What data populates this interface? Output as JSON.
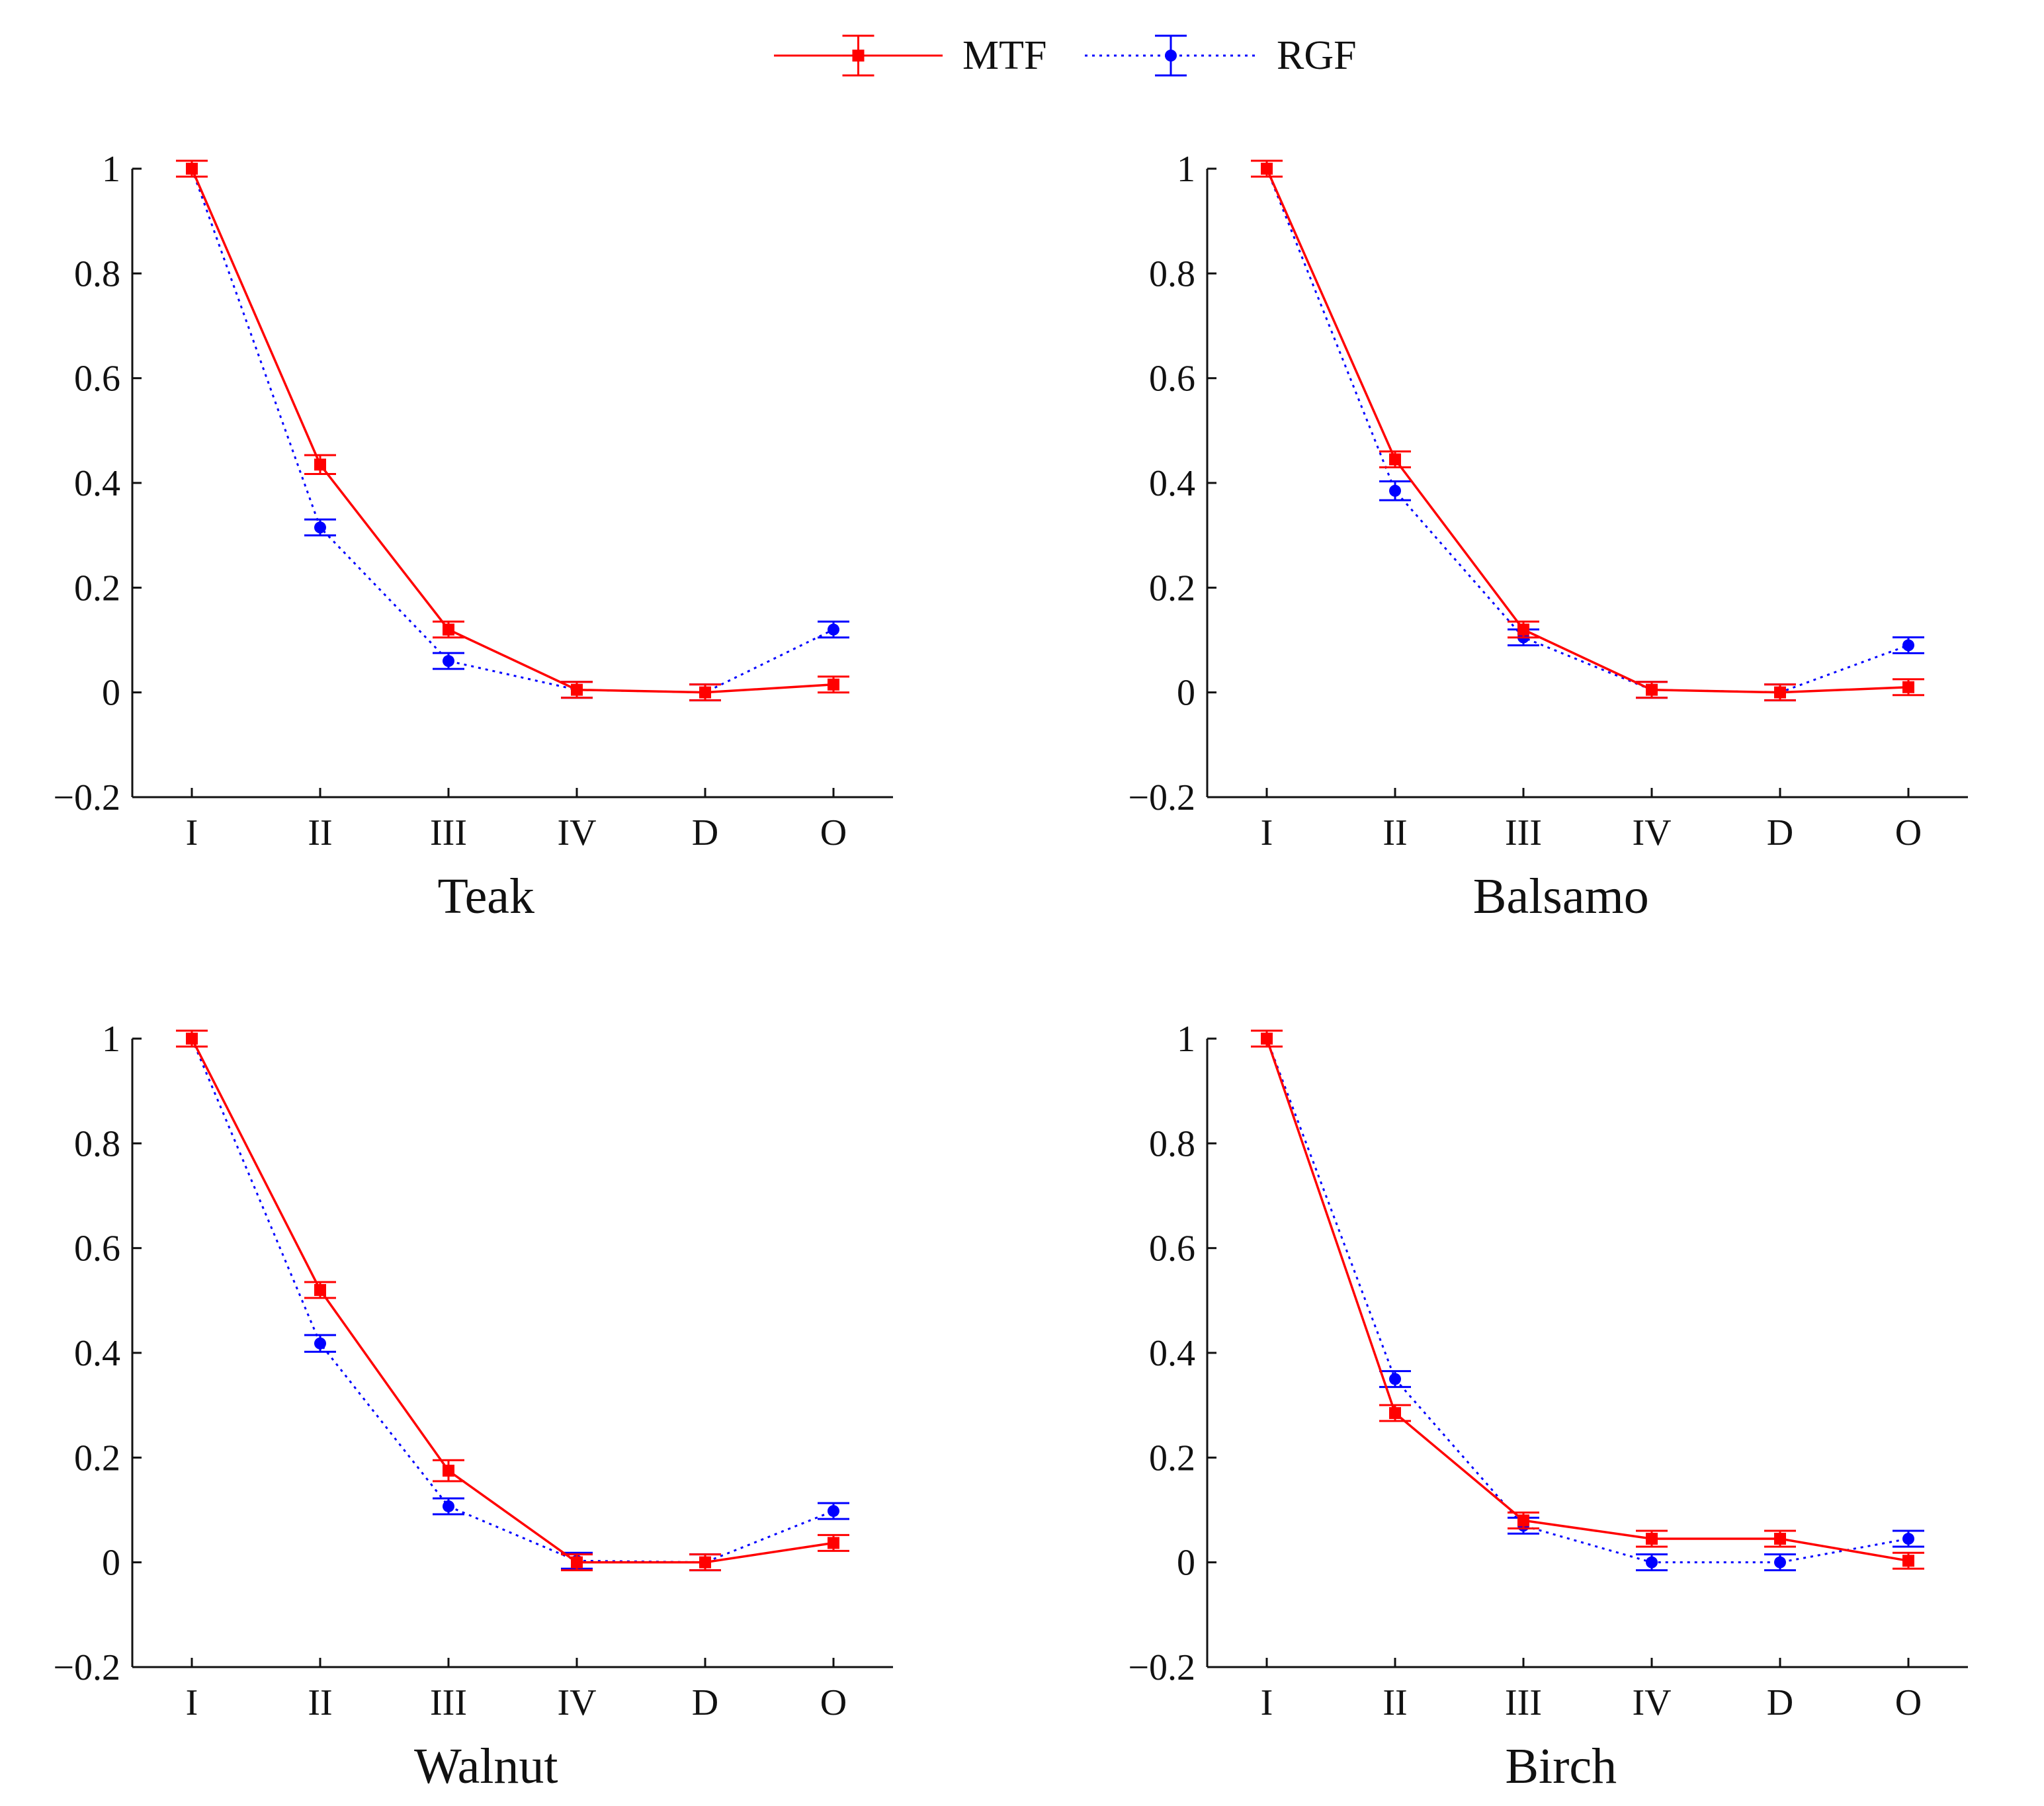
{
  "legend": {
    "items": [
      {
        "label": "MTF",
        "color": "#ff0000",
        "line_style": "solid",
        "marker": "square"
      },
      {
        "label": "RGF",
        "color": "#0000ff",
        "line_style": "dotted",
        "marker": "circle"
      }
    ]
  },
  "chart_data": [
    {
      "type": "line",
      "title": "",
      "xlabel": "Teak",
      "ylabel": "",
      "categories": [
        "I",
        "II",
        "III",
        "IV",
        "D",
        "O"
      ],
      "yticks": [
        "−0.2",
        "0",
        "0.2",
        "0.4",
        "0.6",
        "0.8",
        "1"
      ],
      "ylim": [
        -0.2,
        1.0
      ],
      "grid": false,
      "legend_position": "top-center (shared)",
      "series": [
        {
          "name": "MTF",
          "color": "#ff0000",
          "values": [
            1.0,
            0.435,
            0.12,
            0.005,
            0.0,
            0.015
          ],
          "errors": [
            0.004,
            0.018,
            0.015,
            0.008,
            0.004,
            0.008
          ]
        },
        {
          "name": "RGF",
          "color": "#0000ff",
          "values": [
            1.0,
            0.315,
            0.06,
            0.005,
            0.0,
            0.12
          ],
          "errors": [
            0.004,
            0.014,
            0.008,
            0.008,
            0.004,
            0.015
          ]
        }
      ]
    },
    {
      "type": "line",
      "title": "",
      "xlabel": "Balsamo",
      "ylabel": "",
      "categories": [
        "I",
        "II",
        "III",
        "IV",
        "D",
        "O"
      ],
      "yticks": [
        "−0.2",
        "0",
        "0.2",
        "0.4",
        "0.6",
        "0.8",
        "1"
      ],
      "ylim": [
        -0.2,
        1.0
      ],
      "grid": false,
      "legend_position": "top-center (shared)",
      "series": [
        {
          "name": "MTF",
          "color": "#ff0000",
          "values": [
            1.0,
            0.445,
            0.12,
            0.005,
            0.0,
            0.01
          ],
          "errors": [
            0.004,
            0.015,
            0.015,
            0.012,
            0.01,
            0.008
          ]
        },
        {
          "name": "RGF",
          "color": "#0000ff",
          "values": [
            1.0,
            0.385,
            0.105,
            0.005,
            0.0,
            0.09
          ],
          "errors": [
            0.004,
            0.018,
            0.015,
            0.008,
            0.006,
            0.014
          ]
        }
      ]
    },
    {
      "type": "line",
      "title": "",
      "xlabel": "Walnut",
      "ylabel": "",
      "categories": [
        "I",
        "II",
        "III",
        "IV",
        "D",
        "O"
      ],
      "yticks": [
        "−0.2",
        "0",
        "0.2",
        "0.4",
        "0.6",
        "0.8",
        "1"
      ],
      "ylim": [
        -0.2,
        1.0
      ],
      "grid": false,
      "legend_position": "top-center (shared)",
      "series": [
        {
          "name": "MTF",
          "color": "#ff0000",
          "values": [
            1.0,
            0.52,
            0.175,
            0.0,
            0.0,
            0.037
          ],
          "errors": [
            0.004,
            0.01,
            0.02,
            0.006,
            0.015,
            0.01
          ]
        },
        {
          "name": "RGF",
          "color": "#0000ff",
          "values": [
            1.0,
            0.418,
            0.107,
            0.003,
            0.0,
            0.098
          ],
          "errors": [
            0.004,
            0.016,
            0.006,
            0.006,
            0.006,
            0.006
          ]
        }
      ]
    },
    {
      "type": "line",
      "title": "",
      "xlabel": "Birch",
      "ylabel": "",
      "categories": [
        "I",
        "II",
        "III",
        "IV",
        "D",
        "O"
      ],
      "yticks": [
        "−0.2",
        "0",
        "0.2",
        "0.4",
        "0.6",
        "0.8",
        "1"
      ],
      "ylim": [
        -0.2,
        1.0
      ],
      "grid": false,
      "legend_position": "top-center (shared)",
      "series": [
        {
          "name": "MTF",
          "color": "#ff0000",
          "values": [
            1.0,
            0.285,
            0.08,
            0.045,
            0.045,
            0.003
          ],
          "errors": [
            0.008,
            0.015,
            0.012,
            0.007,
            0.01,
            0.012
          ]
        },
        {
          "name": "RGF",
          "color": "#0000ff",
          "values": [
            1.0,
            0.35,
            0.07,
            0.0,
            0.0,
            0.045
          ],
          "errors": [
            0.004,
            0.004,
            0.012,
            0.006,
            0.004,
            0.006
          ]
        }
      ]
    }
  ]
}
